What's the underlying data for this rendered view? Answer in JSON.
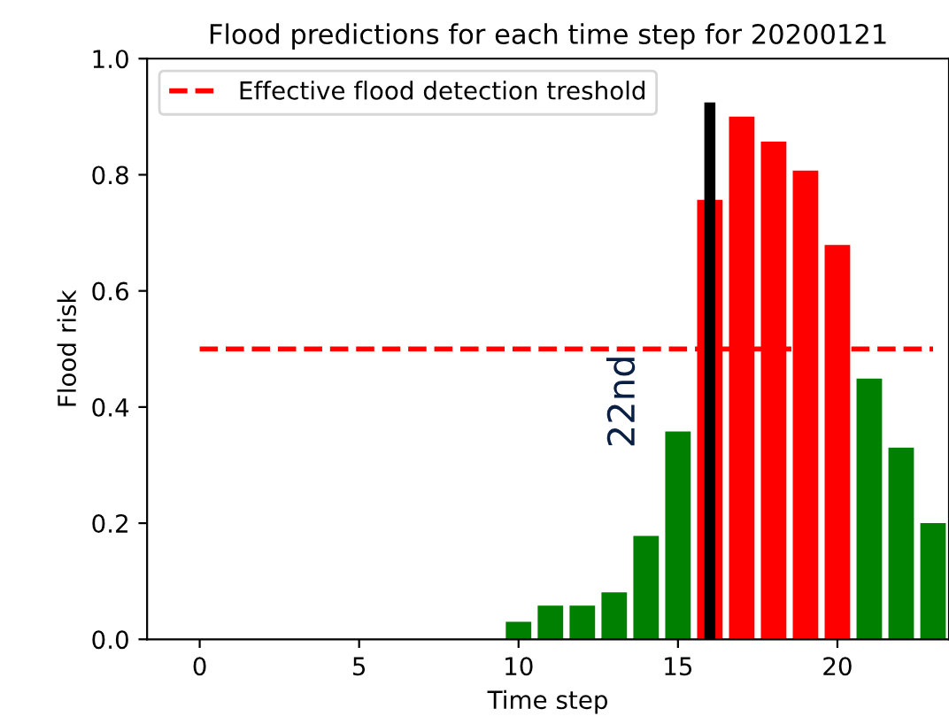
{
  "chart_data": {
    "type": "bar",
    "title": "Flood predictions for each time step for 20200121",
    "xlabel": "Time step",
    "ylabel": "Flood risk",
    "x": [
      0,
      1,
      2,
      3,
      4,
      5,
      6,
      7,
      8,
      9,
      10,
      11,
      12,
      13,
      14,
      15,
      16,
      17,
      18,
      19,
      20,
      21,
      22,
      23
    ],
    "series": [
      {
        "values": [
          0,
          0,
          0,
          0,
          0,
          0,
          0,
          0,
          0,
          0,
          0.03,
          0.058,
          0.058,
          0.081,
          0.178,
          0.358,
          0.757,
          0.9,
          0.857,
          0.807,
          0.679,
          0.449,
          0.33,
          0.2
        ],
        "colors": [
          "#008000",
          "#008000",
          "#008000",
          "#008000",
          "#008000",
          "#008000",
          "#008000",
          "#008000",
          "#008000",
          "#008000",
          "#008000",
          "#008000",
          "#008000",
          "#008000",
          "#008000",
          "#008000",
          "#ff0000",
          "#ff0000",
          "#ff0000",
          "#ff0000",
          "#ff0000",
          "#008000",
          "#008000",
          "#008000"
        ]
      },
      {
        "type": "line",
        "name": "Effective flood detection treshold",
        "x": [
          0,
          23
        ],
        "values": [
          0.5,
          0.5
        ],
        "color": "#ff0000",
        "line_style": "dashed"
      },
      {
        "type": "line",
        "x": [
          16,
          16
        ],
        "values": [
          0,
          0.915
        ],
        "color": "#000000",
        "line_style": "solid"
      }
    ],
    "annotations": [
      "22nd"
    ],
    "xlim": [
      -1.65,
      23.5
    ],
    "ylim": [
      0,
      1
    ],
    "xticks": [
      0,
      5,
      10,
      15,
      20
    ],
    "yticks": [
      {
        "value": 0,
        "label": "0.0"
      },
      {
        "value": 0.2,
        "label": "0.2"
      },
      {
        "value": 0.4,
        "label": "0.4"
      },
      {
        "value": 0.6,
        "label": "0.6"
      },
      {
        "value": 0.8,
        "label": "0.8"
      },
      {
        "value": 1,
        "label": "1.0"
      }
    ],
    "legend": "top left",
    "grid": false
  }
}
